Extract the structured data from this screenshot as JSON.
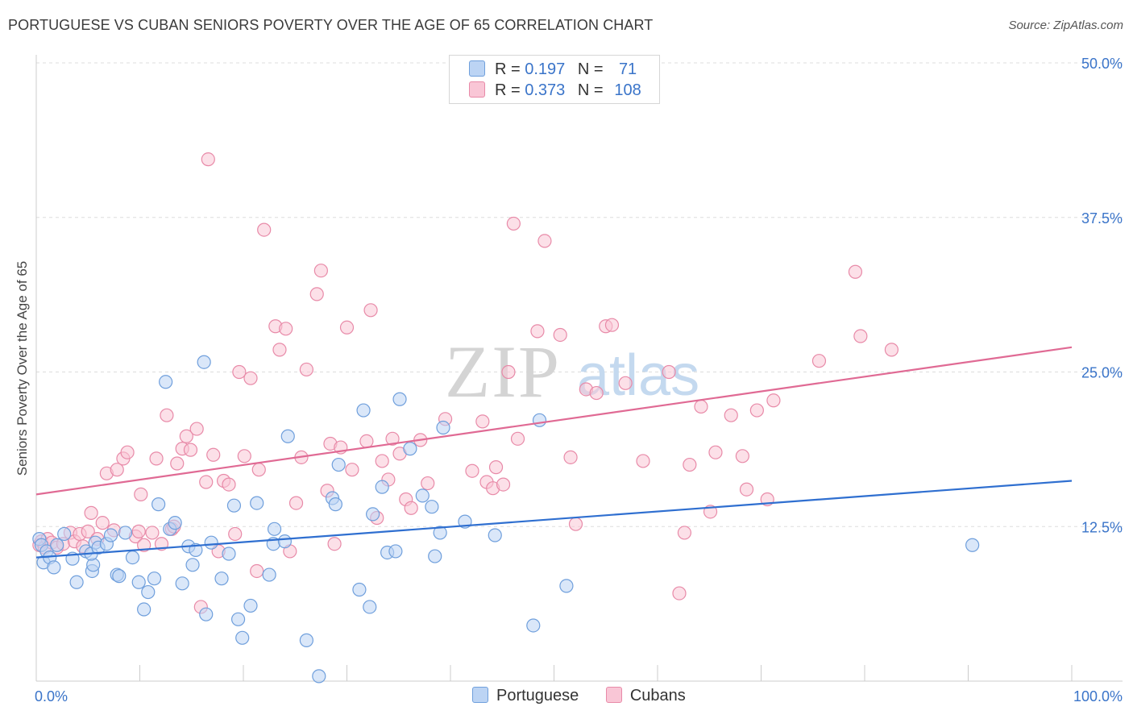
{
  "title": "PORTUGUESE VS CUBAN SENIORS POVERTY OVER THE AGE OF 65 CORRELATION CHART",
  "source": "Source: ZipAtlas.com",
  "watermark": {
    "zip": "ZIP",
    "atlas": "atlas"
  },
  "legend_top": [
    {
      "r_label": "R =",
      "r_value": "0.197",
      "n_label": "N =",
      "n_value": "71"
    },
    {
      "r_label": "R =",
      "r_value": "0.373",
      "n_label": "N =",
      "n_value": "108"
    }
  ],
  "legend_bottom": [
    "Portuguese",
    "Cubans"
  ],
  "colors": {
    "portuguese_fill": "#bcd4f4",
    "portuguese_stroke": "#6f9fdc",
    "portuguese_line": "#2f6fd0",
    "cubans_fill": "#f9c6d6",
    "cubans_stroke": "#e88aa8",
    "cubans_line": "#e06a94",
    "tick_label": "#3a74c9",
    "grid": "#dddddd"
  },
  "chart_data": {
    "type": "scatter",
    "xlabel": "",
    "ylabel": "Seniors Poverty Over the Age of 65",
    "xlim": [
      0,
      100
    ],
    "ylim": [
      0,
      50
    ],
    "x_tick_labels": [
      "0.0%",
      "100.0%"
    ],
    "y_ticks": [
      12.5,
      25.0,
      37.5,
      50.0
    ],
    "y_tick_labels": [
      "12.5%",
      "25.0%",
      "37.5%",
      "50.0%"
    ],
    "grid": "horizontal dashed",
    "legend_placement": "top-center and bottom-center",
    "series": [
      {
        "name": "Portuguese",
        "r": 0.197,
        "n": 71,
        "trend": [
          [
            0,
            10.0
          ],
          [
            100,
            16.2
          ]
        ],
        "points": [
          [
            0.3,
            11.5
          ],
          [
            0.5,
            11.0
          ],
          [
            0.7,
            9.6
          ],
          [
            1.0,
            10.5
          ],
          [
            1.3,
            10.0
          ],
          [
            1.7,
            9.2
          ],
          [
            2.0,
            11.0
          ],
          [
            2.7,
            11.9
          ],
          [
            3.5,
            9.9
          ],
          [
            3.9,
            8.0
          ],
          [
            4.8,
            10.5
          ],
          [
            5.4,
            8.9
          ],
          [
            5.5,
            9.4
          ],
          [
            5.3,
            10.3
          ],
          [
            5.7,
            11.2
          ],
          [
            6.0,
            10.8
          ],
          [
            6.8,
            11.1
          ],
          [
            7.2,
            11.8
          ],
          [
            7.8,
            8.6
          ],
          [
            8.0,
            8.5
          ],
          [
            8.6,
            12.0
          ],
          [
            9.3,
            10.0
          ],
          [
            9.9,
            8.0
          ],
          [
            10.4,
            5.8
          ],
          [
            10.8,
            7.2
          ],
          [
            11.4,
            8.3
          ],
          [
            11.8,
            14.3
          ],
          [
            12.5,
            24.2
          ],
          [
            12.9,
            12.3
          ],
          [
            13.4,
            12.8
          ],
          [
            14.1,
            7.9
          ],
          [
            14.7,
            10.9
          ],
          [
            15.1,
            9.4
          ],
          [
            15.4,
            10.6
          ],
          [
            16.2,
            25.8
          ],
          [
            16.4,
            5.4
          ],
          [
            16.9,
            11.2
          ],
          [
            17.9,
            8.3
          ],
          [
            18.6,
            10.3
          ],
          [
            19.1,
            14.2
          ],
          [
            19.5,
            5.0
          ],
          [
            19.9,
            3.5
          ],
          [
            20.7,
            6.1
          ],
          [
            21.3,
            14.4
          ],
          [
            22.5,
            8.6
          ],
          [
            22.9,
            11.1
          ],
          [
            23.0,
            12.3
          ],
          [
            24.0,
            11.3
          ],
          [
            24.3,
            19.8
          ],
          [
            26.1,
            3.3
          ],
          [
            27.3,
            0.4
          ],
          [
            28.6,
            14.8
          ],
          [
            28.9,
            14.3
          ],
          [
            29.2,
            17.5
          ],
          [
            31.2,
            7.4
          ],
          [
            31.6,
            21.9
          ],
          [
            32.2,
            6.0
          ],
          [
            32.5,
            13.5
          ],
          [
            33.4,
            15.7
          ],
          [
            33.9,
            10.4
          ],
          [
            34.7,
            10.5
          ],
          [
            35.1,
            22.8
          ],
          [
            36.1,
            18.8
          ],
          [
            37.3,
            15.0
          ],
          [
            38.2,
            14.1
          ],
          [
            38.5,
            10.1
          ],
          [
            39.0,
            12.0
          ],
          [
            39.3,
            20.5
          ],
          [
            41.4,
            12.9
          ],
          [
            44.3,
            11.8
          ],
          [
            48.0,
            4.5
          ],
          [
            48.6,
            21.1
          ],
          [
            51.2,
            7.7
          ],
          [
            90.4,
            11.0
          ]
        ]
      },
      {
        "name": "Cubans",
        "r": 0.373,
        "n": 108,
        "trend": [
          [
            0,
            15.1
          ],
          [
            100,
            27.0
          ]
        ],
        "points": [
          [
            0.3,
            11.0
          ],
          [
            0.5,
            11.3
          ],
          [
            0.8,
            10.8
          ],
          [
            1.1,
            11.5
          ],
          [
            1.5,
            11.2
          ],
          [
            2.0,
            10.8
          ],
          [
            2.6,
            11.1
          ],
          [
            3.3,
            12.0
          ],
          [
            3.7,
            11.3
          ],
          [
            4.2,
            11.9
          ],
          [
            4.5,
            10.9
          ],
          [
            5.0,
            12.1
          ],
          [
            5.3,
            13.6
          ],
          [
            5.9,
            11.5
          ],
          [
            6.4,
            12.8
          ],
          [
            6.8,
            16.8
          ],
          [
            7.5,
            12.2
          ],
          [
            7.8,
            17.1
          ],
          [
            8.4,
            18.0
          ],
          [
            8.8,
            18.5
          ],
          [
            9.6,
            11.7
          ],
          [
            9.9,
            12.1
          ],
          [
            10.1,
            15.1
          ],
          [
            10.4,
            11.0
          ],
          [
            11.2,
            12.0
          ],
          [
            11.6,
            18.0
          ],
          [
            12.1,
            11.1
          ],
          [
            12.6,
            21.5
          ],
          [
            13.1,
            12.3
          ],
          [
            13.3,
            12.5
          ],
          [
            13.6,
            17.6
          ],
          [
            14.1,
            18.8
          ],
          [
            14.5,
            19.8
          ],
          [
            14.9,
            18.7
          ],
          [
            15.5,
            20.4
          ],
          [
            15.9,
            6.0
          ],
          [
            16.4,
            16.1
          ],
          [
            16.6,
            42.2
          ],
          [
            17.1,
            18.3
          ],
          [
            17.6,
            10.5
          ],
          [
            18.1,
            16.2
          ],
          [
            18.6,
            15.9
          ],
          [
            19.2,
            11.9
          ],
          [
            19.6,
            25.0
          ],
          [
            20.1,
            18.2
          ],
          [
            20.7,
            24.5
          ],
          [
            21.3,
            8.9
          ],
          [
            21.5,
            17.1
          ],
          [
            22.0,
            36.5
          ],
          [
            23.1,
            28.7
          ],
          [
            23.5,
            26.8
          ],
          [
            24.1,
            28.5
          ],
          [
            24.5,
            10.5
          ],
          [
            25.1,
            14.4
          ],
          [
            25.6,
            18.1
          ],
          [
            26.1,
            25.2
          ],
          [
            27.1,
            31.3
          ],
          [
            27.5,
            33.2
          ],
          [
            28.1,
            15.4
          ],
          [
            28.4,
            19.2
          ],
          [
            28.8,
            11.1
          ],
          [
            29.4,
            18.9
          ],
          [
            30.0,
            28.6
          ],
          [
            30.5,
            17.1
          ],
          [
            31.9,
            19.4
          ],
          [
            32.3,
            30.0
          ],
          [
            32.9,
            13.2
          ],
          [
            33.4,
            17.8
          ],
          [
            34.0,
            16.3
          ],
          [
            34.4,
            19.6
          ],
          [
            35.1,
            18.4
          ],
          [
            35.7,
            14.7
          ],
          [
            36.2,
            14.0
          ],
          [
            37.1,
            19.5
          ],
          [
            37.8,
            16.0
          ],
          [
            39.5,
            21.2
          ],
          [
            42.1,
            17.0
          ],
          [
            43.1,
            21.0
          ],
          [
            43.5,
            16.1
          ],
          [
            44.1,
            15.6
          ],
          [
            44.4,
            17.3
          ],
          [
            45.1,
            15.9
          ],
          [
            45.6,
            25.0
          ],
          [
            46.1,
            37.0
          ],
          [
            46.5,
            19.6
          ],
          [
            48.4,
            28.3
          ],
          [
            49.1,
            35.6
          ],
          [
            50.6,
            28.0
          ],
          [
            51.6,
            18.1
          ],
          [
            52.1,
            12.7
          ],
          [
            53.1,
            23.6
          ],
          [
            54.1,
            23.3
          ],
          [
            55.0,
            28.7
          ],
          [
            55.6,
            28.8
          ],
          [
            56.9,
            24.1
          ],
          [
            58.6,
            17.8
          ],
          [
            61.1,
            25.0
          ],
          [
            62.1,
            7.1
          ],
          [
            62.6,
            12.0
          ],
          [
            63.1,
            17.5
          ],
          [
            64.2,
            22.2
          ],
          [
            65.1,
            13.7
          ],
          [
            65.6,
            18.5
          ],
          [
            67.1,
            21.5
          ],
          [
            68.2,
            18.2
          ],
          [
            68.6,
            15.5
          ],
          [
            69.6,
            21.9
          ],
          [
            70.6,
            14.7
          ],
          [
            71.2,
            22.7
          ],
          [
            75.6,
            25.9
          ],
          [
            79.1,
            33.1
          ],
          [
            79.6,
            27.9
          ],
          [
            82.6,
            26.8
          ]
        ]
      }
    ]
  }
}
